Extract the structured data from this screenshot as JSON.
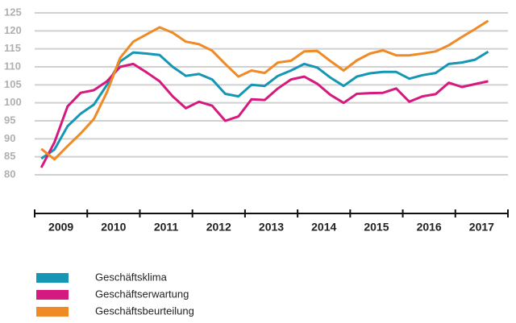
{
  "chart_data": {
    "type": "line",
    "x": [
      2009.125,
      2009.375,
      2009.625,
      2009.875,
      2010.125,
      2010.375,
      2010.625,
      2010.875,
      2011.125,
      2011.375,
      2011.625,
      2011.875,
      2012.125,
      2012.375,
      2012.625,
      2012.875,
      2013.125,
      2013.375,
      2013.625,
      2013.875,
      2014.125,
      2014.375,
      2014.625,
      2014.875,
      2015.125,
      2015.375,
      2015.625,
      2015.875,
      2016.125,
      2016.375,
      2016.625,
      2016.875,
      2017.125,
      2017.375,
      2017.625
    ],
    "series": [
      {
        "name": "Geschäftsklima",
        "color": "#1596b4",
        "values": [
          84.5,
          87,
          93.5,
          97,
          99.5,
          105,
          111.5,
          114,
          113.7,
          113.3,
          110,
          107.5,
          108,
          106.5,
          102.5,
          101.8,
          105,
          104.7,
          107.5,
          109,
          110.8,
          109.8,
          107,
          104.7,
          107.3,
          108.2,
          108.6,
          108.6,
          106.7,
          107.7,
          108.3,
          110.8,
          111.2,
          112,
          114.2
        ]
      },
      {
        "name": "Geschäftserwartung",
        "color": "#d6197f",
        "values": [
          82,
          89,
          99,
          102.8,
          103.5,
          106,
          110,
          110.8,
          108.5,
          106,
          101.8,
          98.5,
          100.3,
          99.2,
          95,
          96.2,
          101,
          100.8,
          104,
          106.5,
          107.3,
          105.3,
          102.2,
          100,
          102.5,
          102.7,
          102.8,
          104,
          100.3,
          101.8,
          102.4,
          105.6,
          104.4,
          105.2,
          106
        ]
      },
      {
        "name": "Geschäftsbeurteilung",
        "color": "#f08a24",
        "values": [
          87.2,
          84.3,
          88,
          91.5,
          95.5,
          103,
          112.5,
          117,
          119,
          121,
          119.5,
          117,
          116.3,
          114.5,
          110.8,
          107.3,
          109,
          108.3,
          111.2,
          111.7,
          114.3,
          114.4,
          111.6,
          109,
          111.8,
          113.7,
          114.6,
          113.2,
          113.2,
          113.7,
          114.3,
          116,
          118.3,
          120.5,
          122.8
        ]
      }
    ],
    "xlim": [
      2009,
      2018
    ],
    "xticks": [
      2009,
      2010,
      2011,
      2012,
      2013,
      2014,
      2015,
      2016,
      2017,
      2018
    ],
    "year_labels": [
      "2009",
      "2010",
      "2011",
      "2012",
      "2013",
      "2014",
      "2015",
      "2016",
      "2017"
    ],
    "ylim": [
      80,
      125
    ],
    "yticks": [
      80,
      85,
      90,
      95,
      100,
      105,
      110,
      115,
      120,
      125
    ],
    "grid": true
  }
}
